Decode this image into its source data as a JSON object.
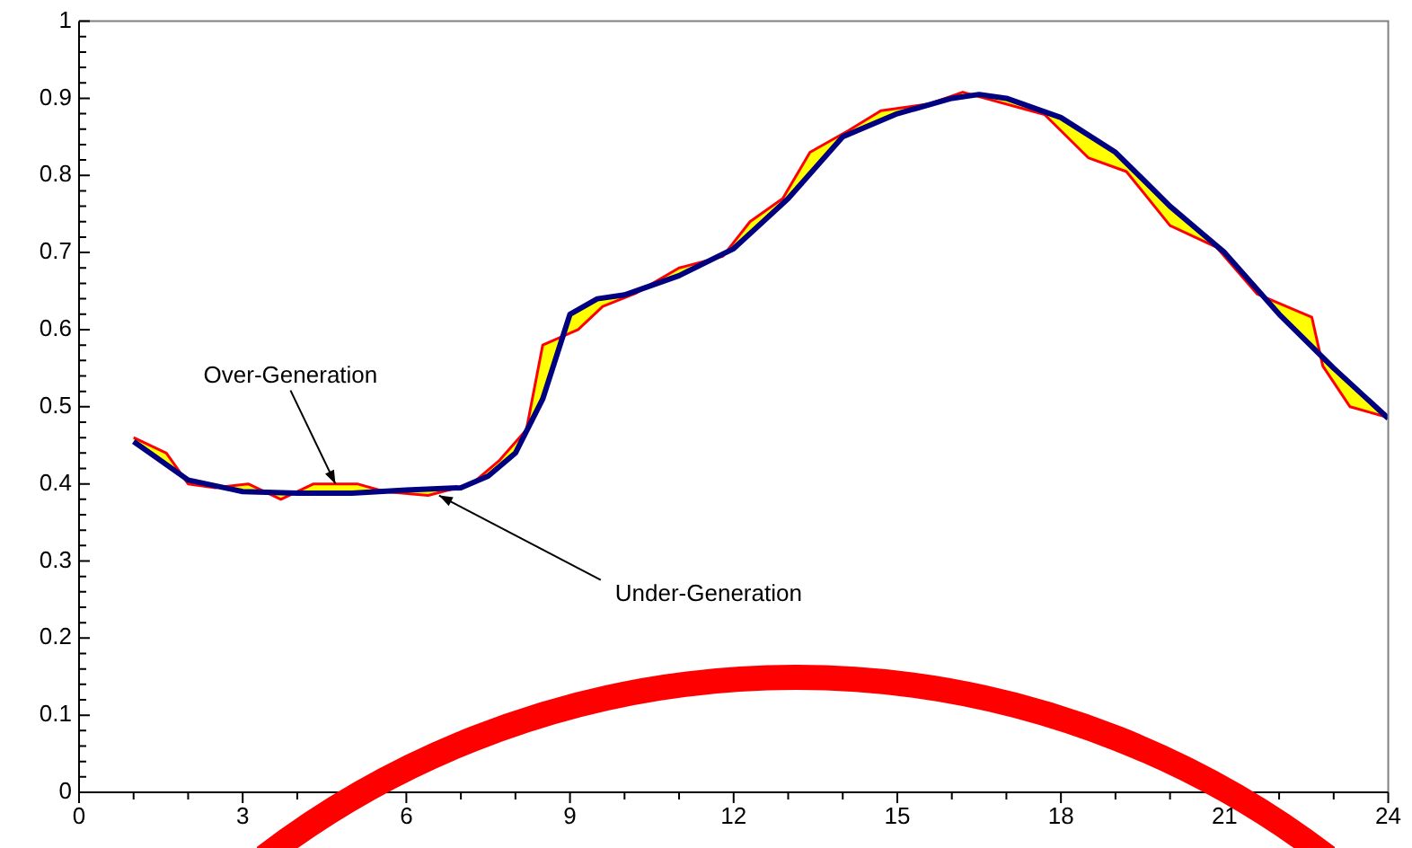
{
  "chart_data": {
    "type": "line",
    "xlim": [
      0,
      24
    ],
    "xticks": [
      0,
      {
        "value": 1,
        "label": null
      },
      {
        "value": 2,
        "label": null
      },
      3,
      {
        "value": 4,
        "label": null
      },
      {
        "value": 5,
        "label": null
      },
      6,
      {
        "value": 7,
        "label": null
      },
      {
        "value": 8,
        "label": null
      },
      9,
      {
        "value": 10,
        "label": null
      },
      {
        "value": 11,
        "label": null
      },
      12,
      {
        "value": 13,
        "label": null
      },
      {
        "value": 14,
        "label": null
      },
      15,
      {
        "value": 16,
        "label": null
      },
      {
        "value": 17,
        "label": null
      },
      18,
      {
        "value": 19,
        "label": null
      },
      {
        "value": 20,
        "label": null
      },
      21,
      {
        "value": 22,
        "label": null
      },
      {
        "value": 23,
        "label": null
      },
      24
    ],
    "ylim": [
      0,
      1
    ],
    "yticks": [
      0,
      {
        "value": 0.02,
        "label": null
      },
      {
        "value": 0.04,
        "label": null
      },
      {
        "value": 0.06,
        "label": null
      },
      {
        "value": 0.08,
        "label": null
      },
      0.1,
      {
        "value": 0.12,
        "label": null
      },
      {
        "value": 0.14,
        "label": null
      },
      {
        "value": 0.16,
        "label": null
      },
      {
        "value": 0.18,
        "label": null
      },
      0.2,
      {
        "value": 0.22,
        "label": null
      },
      {
        "value": 0.24,
        "label": null
      },
      {
        "value": 0.26,
        "label": null
      },
      {
        "value": 0.28,
        "label": null
      },
      0.3,
      {
        "value": 0.32,
        "label": null
      },
      {
        "value": 0.34,
        "label": null
      },
      {
        "value": 0.36,
        "label": null
      },
      {
        "value": 0.38,
        "label": null
      },
      0.4,
      {
        "value": 0.42,
        "label": null
      },
      {
        "value": 0.44,
        "label": null
      },
      {
        "value": 0.46,
        "label": null
      },
      {
        "value": 0.48,
        "label": null
      },
      0.5,
      {
        "value": 0.52,
        "label": null
      },
      {
        "value": 0.54,
        "label": null
      },
      {
        "value": 0.56,
        "label": null
      },
      {
        "value": 0.58,
        "label": null
      },
      0.6,
      {
        "value": 0.62,
        "label": null
      },
      {
        "value": 0.64,
        "label": null
      },
      {
        "value": 0.66,
        "label": null
      },
      {
        "value": 0.68,
        "label": null
      },
      0.7,
      {
        "value": 0.72,
        "label": null
      },
      {
        "value": 0.74,
        "label": null
      },
      {
        "value": 0.76,
        "label": null
      },
      {
        "value": 0.78,
        "label": null
      },
      0.8,
      {
        "value": 0.82,
        "label": null
      },
      {
        "value": 0.84,
        "label": null
      },
      {
        "value": 0.86,
        "label": null
      },
      {
        "value": 0.88,
        "label": null
      },
      0.9,
      {
        "value": 0.92,
        "label": null
      },
      {
        "value": 0.94,
        "label": null
      },
      {
        "value": 0.96,
        "label": null
      },
      {
        "value": 0.98,
        "label": null
      },
      1
    ],
    "grid": false,
    "legend": false,
    "marker": "none",
    "series": [
      {
        "color": "#ff0000",
        "x": [
          1.0,
          1.6,
          2.0,
          2.5,
          3.1,
          3.7,
          4.3,
          5.1,
          5.6,
          6.4,
          7.2,
          7.7,
          8.2,
          8.5,
          9.15,
          9.6,
          10.2,
          11.0,
          11.8,
          12.3,
          12.9,
          13.4,
          14.1,
          14.7,
          15.6,
          16.2,
          17.7,
          18.5,
          19.2,
          20.0,
          20.85,
          21.6,
          22.6,
          22.8,
          23.3,
          24.0
        ],
        "values": [
          0.46,
          0.44,
          0.4,
          0.395,
          0.4,
          0.38,
          0.4,
          0.4,
          0.39,
          0.385,
          0.4,
          0.43,
          0.47,
          0.58,
          0.6,
          0.63,
          0.647,
          0.68,
          0.695,
          0.74,
          0.77,
          0.83,
          0.858,
          0.884,
          0.893,
          0.908,
          0.879,
          0.823,
          0.805,
          0.735,
          0.707,
          0.646,
          0.616,
          0.553,
          0.5,
          0.486
        ]
      },
      {
        "color": "#000080",
        "x": [
          1.0,
          2,
          3,
          4,
          5,
          6,
          7,
          7.5,
          8,
          8.5,
          9,
          9.5,
          10,
          11,
          12,
          13,
          14,
          15,
          16,
          16.5,
          17,
          18,
          19,
          20,
          21,
          22,
          23,
          24
        ],
        "values": [
          0.455,
          0.405,
          0.39,
          0.388,
          0.388,
          0.392,
          0.395,
          0.41,
          0.44,
          0.51,
          0.62,
          0.64,
          0.645,
          0.67,
          0.705,
          0.77,
          0.85,
          0.88,
          0.9,
          0.905,
          0.9,
          0.875,
          0.83,
          0.76,
          0.7,
          0.62,
          0.55,
          0.485
        ]
      }
    ],
    "annotations": [
      {
        "text": "Over-Generation",
        "x": 4.7,
        "y": 0.4
      },
      {
        "text": "Under-Generation",
        "x": 6.6,
        "y": 0.385
      }
    ]
  }
}
